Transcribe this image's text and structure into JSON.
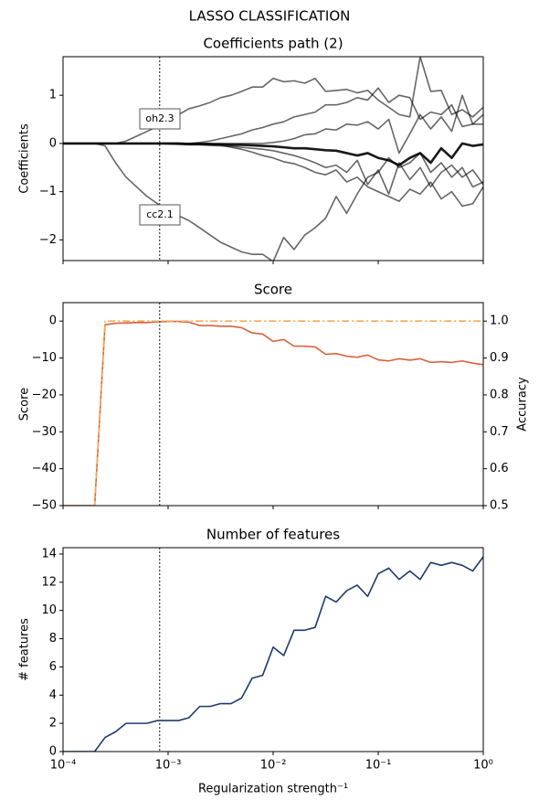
{
  "title": "LASSO CLASSIFICATION",
  "chart_data": [
    {
      "type": "line",
      "title": "Coefficients path (2)",
      "ylabel": "Coefficients",
      "xscale": "log",
      "x": [
        0.0001,
        0.000126,
        0.000158,
        0.0002,
        0.000251,
        0.000316,
        0.000398,
        0.000501,
        0.000631,
        0.000794,
        0.001,
        0.00126,
        0.00158,
        0.002,
        0.00251,
        0.00316,
        0.00398,
        0.00501,
        0.00631,
        0.00794,
        0.01,
        0.0126,
        0.0158,
        0.02,
        0.0251,
        0.0316,
        0.0398,
        0.0501,
        0.0631,
        0.0794,
        0.1,
        0.126,
        0.158,
        0.2,
        0.251,
        0.316,
        0.398,
        0.501,
        0.631,
        0.794,
        1
      ],
      "xlim": [
        0.0001,
        1
      ],
      "xticks": [
        0.0001,
        0.001,
        0.01,
        0.1,
        1
      ],
      "ylim": [
        -2.43,
        1.8
      ],
      "yticks": [
        {
          "value": -2,
          "label": "−2"
        },
        {
          "value": -1,
          "label": "−1"
        },
        0,
        1
      ],
      "vline": 0.00083,
      "annotations": [
        "oh2.3",
        "cc2.1"
      ],
      "series": [
        {
          "color": "#000000",
          "opacity": 0.6,
          "width": 1.6,
          "values": [
            0,
            0,
            0,
            0,
            0,
            0,
            0.05,
            0.15,
            0.25,
            0.35,
            0.45,
            0.6,
            0.72,
            0.78,
            0.85,
            0.95,
            1.0,
            1.08,
            1.17,
            1.17,
            1.35,
            1.28,
            1.3,
            1.25,
            1.35,
            1.08,
            1.1,
            1.12,
            1.05,
            1.1,
            0.9,
            0.75,
            0.6,
            0.55,
            1.8,
            1.08,
            1.1,
            0.6,
            0.7,
            0.55,
            0.75
          ]
        },
        {
          "color": "#000000",
          "opacity": 0.6,
          "width": 1.6,
          "values": [
            0,
            0,
            0,
            0,
            -0.05,
            -0.4,
            -0.7,
            -0.9,
            -1.1,
            -1.25,
            -1.4,
            -1.5,
            -1.6,
            -1.75,
            -1.9,
            -2.05,
            -2.15,
            -2.25,
            -2.3,
            -2.3,
            -2.45,
            -1.95,
            -2.2,
            -1.9,
            -1.75,
            -1.55,
            -1.1,
            -1.45,
            -1.05,
            -0.7,
            -0.6,
            -0.3,
            -0.5,
            -0.4,
            -0.2,
            -0.6,
            -0.4,
            -0.7,
            -0.5,
            -0.9,
            -0.8
          ]
        },
        {
          "color": "#000000",
          "opacity": 0.6,
          "width": 1.6,
          "values": [
            0,
            0,
            0,
            0,
            0,
            0,
            0,
            0,
            0,
            0,
            0,
            0,
            0,
            0.02,
            0.05,
            0.1,
            0.15,
            0.2,
            0.28,
            0.33,
            0.4,
            0.45,
            0.55,
            0.6,
            0.65,
            0.8,
            0.8,
            0.85,
            0.95,
            0.9,
            1.15,
            0.85,
            1.0,
            0.95,
            0.5,
            0.65,
            0.6,
            0.8,
            0.35,
            0.4,
            0.6
          ]
        },
        {
          "color": "#000000",
          "opacity": 0.6,
          "width": 1.6,
          "values": [
            0,
            0,
            0,
            0,
            0,
            0,
            0,
            0,
            0,
            0,
            0,
            0,
            0,
            0,
            0,
            -0.03,
            -0.08,
            -0.12,
            -0.18,
            -0.25,
            -0.3,
            -0.38,
            -0.42,
            -0.5,
            -0.6,
            -0.65,
            -0.55,
            -0.8,
            -0.7,
            -0.9,
            -1.0,
            -1.1,
            -1.2,
            -0.95,
            -1.05,
            -0.8,
            -1.15,
            -1.0,
            -1.3,
            -1.25,
            -0.9
          ]
        },
        {
          "color": "#000000",
          "opacity": 0.6,
          "width": 1.6,
          "values": [
            0,
            0,
            0,
            0,
            0,
            0,
            0,
            0,
            0,
            0,
            0,
            0,
            0,
            0,
            0,
            0,
            0,
            0,
            0,
            0,
            0.02,
            0.05,
            0.1,
            0.18,
            0.2,
            0.3,
            0.28,
            0.4,
            0.38,
            0.45,
            0.3,
            0.5,
            -0.2,
            0.2,
            0.6,
            0.3,
            0.55,
            0.25,
            1.0,
            0.4,
            0.4
          ]
        },
        {
          "color": "#000000",
          "opacity": 0.6,
          "width": 1.6,
          "values": [
            0,
            0,
            0,
            0,
            0,
            0,
            0,
            0,
            0,
            0,
            -0.01,
            -0.02,
            -0.03,
            -0.03,
            -0.04,
            -0.05,
            -0.06,
            -0.08,
            -0.1,
            -0.12,
            -0.15,
            -0.2,
            -0.25,
            -0.32,
            -0.4,
            -0.5,
            -0.45,
            -0.6,
            -0.35,
            -0.85,
            -0.55,
            -1.05,
            -0.4,
            -0.75,
            -0.5,
            -0.9,
            -0.6,
            -0.45,
            -0.7,
            -0.55,
            -0.85
          ]
        },
        {
          "color": "#000000",
          "opacity": 0.9,
          "width": 2.6,
          "values": [
            0,
            0,
            0,
            0,
            0,
            0,
            0,
            0,
            0,
            0,
            0,
            0,
            -0.01,
            -0.01,
            -0.02,
            -0.02,
            -0.03,
            -0.03,
            -0.04,
            -0.05,
            -0.06,
            -0.08,
            -0.1,
            -0.1,
            -0.12,
            -0.14,
            -0.15,
            -0.2,
            -0.25,
            -0.2,
            -0.3,
            -0.35,
            -0.45,
            -0.3,
            -0.2,
            -0.4,
            -0.1,
            -0.3,
            0.0,
            -0.05,
            -0.02
          ]
        }
      ]
    },
    {
      "type": "line",
      "title": "Score",
      "ylabel": "Score",
      "ylabel_color": "#d9603b",
      "y2label": "Accuracy",
      "y2label_color": "#f4a85a",
      "xscale": "log",
      "x": [
        0.0001,
        0.000126,
        0.000158,
        0.0002,
        0.000251,
        0.000316,
        0.000398,
        0.000501,
        0.000631,
        0.000794,
        0.001,
        0.00126,
        0.00158,
        0.002,
        0.00251,
        0.00316,
        0.00398,
        0.00501,
        0.00631,
        0.00794,
        0.01,
        0.0126,
        0.0158,
        0.02,
        0.0251,
        0.0316,
        0.0398,
        0.0501,
        0.0631,
        0.0794,
        0.1,
        0.126,
        0.158,
        0.2,
        0.251,
        0.316,
        0.398,
        0.501,
        0.631,
        0.794,
        1
      ],
      "xlim": [
        0.0001,
        1
      ],
      "xticks": [
        0.0001,
        0.001,
        0.01,
        0.1,
        1
      ],
      "ylim": [
        -50,
        5
      ],
      "yticks": [
        {
          "value": -50,
          "label": "−50"
        },
        {
          "value": -40,
          "label": "−40"
        },
        {
          "value": -30,
          "label": "−30"
        },
        {
          "value": -20,
          "label": "−20"
        },
        {
          "value": -10,
          "label": "−10"
        },
        0
      ],
      "y2lim": [
        0.5,
        1.05
      ],
      "y2ticks": [
        0.5,
        0.6,
        0.7,
        0.8,
        0.9,
        {
          "value": 1,
          "label": "1.0"
        }
      ],
      "vline": 0.00083,
      "series": [
        {
          "color": "#d9603b",
          "width": 1.6,
          "values": [
            -50,
            -50,
            -50,
            -50,
            -1,
            -0.6,
            -0.5,
            -0.4,
            -0.4,
            -0.2,
            -0.1,
            -0.1,
            -0.3,
            -1.2,
            -1.2,
            -1.4,
            -1.4,
            -1.8,
            -3.2,
            -3.5,
            -5.5,
            -5,
            -6.8,
            -6.8,
            -7,
            -9,
            -8.8,
            -9.5,
            -9.8,
            -9.2,
            -10.5,
            -10.8,
            -10.2,
            -10.6,
            -10.2,
            -11.2,
            -11,
            -11.2,
            -10.8,
            -11.4,
            -11.8
          ]
        },
        {
          "color": "#f4a85a",
          "width": 1.6,
          "dash": "dashdot",
          "axis": "y2",
          "values": [
            0.5,
            0.5,
            0.5,
            0.5,
            1,
            1,
            1,
            1,
            1,
            1,
            1,
            1,
            1,
            1,
            1,
            1,
            1,
            1,
            1,
            1,
            1,
            1,
            1,
            1,
            1,
            1,
            1,
            1,
            1,
            1,
            1,
            1,
            1,
            1,
            1,
            1,
            1,
            1,
            1,
            1,
            1
          ]
        }
      ]
    },
    {
      "type": "line",
      "title": "Number of features",
      "ylabel": "# features",
      "ylabel_color": "#1f3a6e",
      "xlabel": "Regularization strength⁻¹",
      "xscale": "log",
      "x": [
        0.0001,
        0.000126,
        0.000158,
        0.0002,
        0.000251,
        0.000316,
        0.000398,
        0.000501,
        0.000631,
        0.000794,
        0.001,
        0.00126,
        0.00158,
        0.002,
        0.00251,
        0.00316,
        0.00398,
        0.00501,
        0.00631,
        0.00794,
        0.01,
        0.0126,
        0.0158,
        0.02,
        0.0251,
        0.0316,
        0.0398,
        0.0501,
        0.0631,
        0.0794,
        0.1,
        0.126,
        0.158,
        0.2,
        0.251,
        0.316,
        0.398,
        0.501,
        0.631,
        0.794,
        1
      ],
      "xlim": [
        0.0001,
        1
      ],
      "xticks": [
        {
          "value": 0.0001,
          "label": "10⁻⁴"
        },
        {
          "value": 0.001,
          "label": "10⁻³"
        },
        {
          "value": 0.01,
          "label": "10⁻²"
        },
        {
          "value": 0.1,
          "label": "10⁻¹"
        },
        {
          "value": 1,
          "label": "10⁰"
        }
      ],
      "ylim": [
        0,
        14.45
      ],
      "yticks": [
        0,
        2,
        4,
        6,
        8,
        10,
        12,
        14
      ],
      "vline": 0.00083,
      "series": [
        {
          "color": "#1f3a6e",
          "width": 1.6,
          "values": [
            0,
            0,
            0,
            0,
            1,
            1.4,
            2,
            2,
            2,
            2.2,
            2.2,
            2.2,
            2.4,
            3.2,
            3.2,
            3.4,
            3.4,
            3.8,
            5.2,
            5.4,
            7.4,
            6.8,
            8.6,
            8.6,
            8.8,
            11,
            10.6,
            11.4,
            11.8,
            11,
            12.6,
            13,
            12.2,
            12.8,
            12.2,
            13.4,
            13.2,
            13.4,
            13.2,
            12.8,
            13.8
          ]
        }
      ]
    }
  ]
}
